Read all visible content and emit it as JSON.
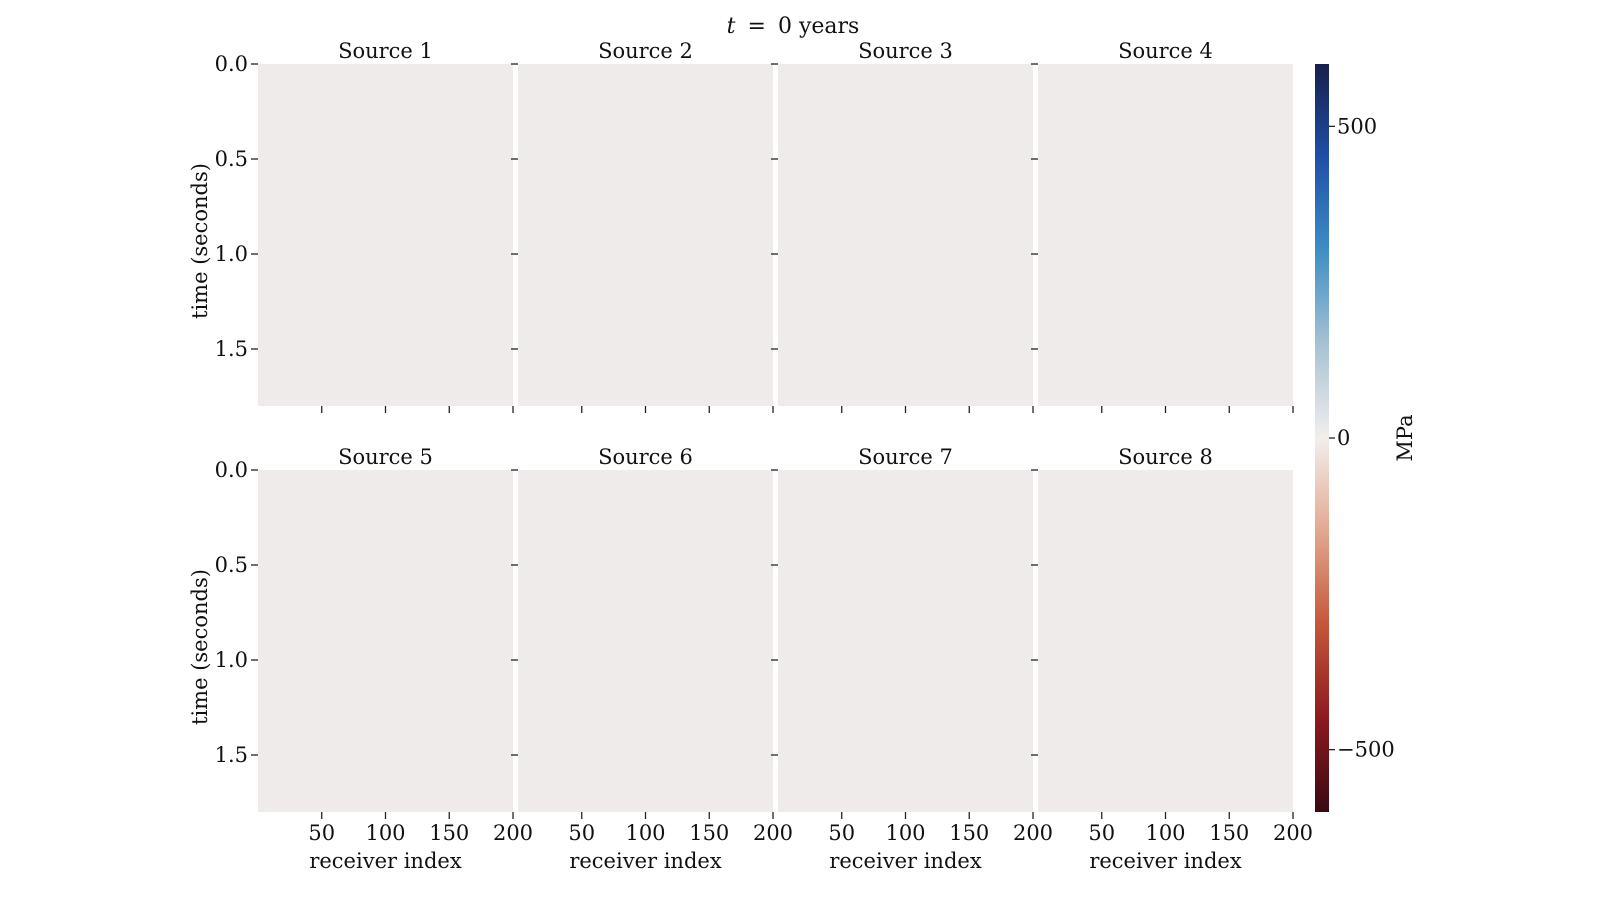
{
  "figure": {
    "title_var": "t",
    "title_eq": "=",
    "title_value": "0 years"
  },
  "chart_data": {
    "type": "heatmap",
    "panels": [
      {
        "title": "Source 1"
      },
      {
        "title": "Source 2"
      },
      {
        "title": "Source 3"
      },
      {
        "title": "Source 4"
      },
      {
        "title": "Source 5"
      },
      {
        "title": "Source 6"
      },
      {
        "title": "Source 7"
      },
      {
        "title": "Source 8"
      }
    ],
    "xlabel": "receiver index",
    "ylabel": "time (seconds)",
    "xlim": [
      0,
      200
    ],
    "ylim": [
      1.8,
      0.0
    ],
    "x_ticks": [
      50,
      100,
      150,
      200
    ],
    "y_ticks": [
      0.0,
      0.5,
      1.0,
      1.5
    ],
    "x_tick_labels": [
      "50",
      "100",
      "150",
      "200"
    ],
    "y_tick_labels": [
      "0.0",
      "0.5",
      "1.0",
      "1.5"
    ],
    "value_everywhere": 0,
    "field_color": "#eeebea",
    "colorbar": {
      "label": "MPa",
      "vmin": -600,
      "vmax": 600,
      "ticks": [
        500,
        0,
        -500
      ],
      "tick_labels": [
        "500",
        "0",
        "−500"
      ],
      "colormap_stops": [
        "#3a0a12",
        "#8c1a1f",
        "#c4563a",
        "#e2a890",
        "#f2eeec",
        "#a7c2d4",
        "#3f8ec4",
        "#1f4fa8",
        "#17204a"
      ]
    }
  }
}
